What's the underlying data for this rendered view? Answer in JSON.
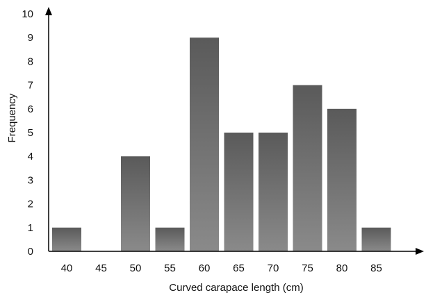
{
  "chart_data": {
    "type": "bar",
    "categories": [
      "40",
      "45",
      "50",
      "55",
      "60",
      "65",
      "70",
      "75",
      "80",
      "85"
    ],
    "values": [
      1,
      0,
      4,
      1,
      9,
      5,
      5,
      7,
      6,
      1
    ],
    "xlabel": "Curved carapace length (cm)",
    "ylabel": "Frequency",
    "ylim": [
      0,
      10
    ],
    "yticks": [
      "0",
      "1",
      "2",
      "3",
      "4",
      "5",
      "6",
      "7",
      "8",
      "9",
      "10"
    ],
    "grid": false,
    "legend": "none",
    "bar_color": "#6e6e6e",
    "bar_color_top": "#5a5a5a",
    "bar_color_bottom": "#8a8a8a"
  }
}
